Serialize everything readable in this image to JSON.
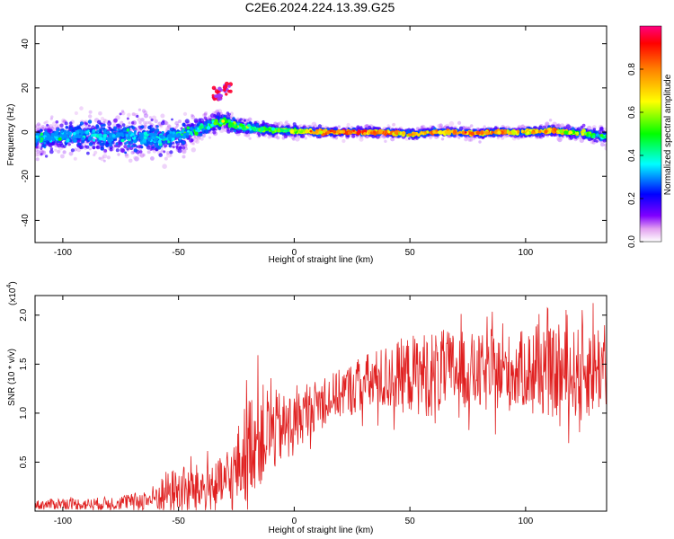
{
  "figure_title": "C2E6.2024.224.13.39.G25",
  "chart_data": [
    {
      "type": "heatmap",
      "xlabel": "Height of straight line (km)",
      "ylabel": "Frequency (Hz)",
      "xlim": [
        -112,
        135
      ],
      "ylim": [
        -50,
        48
      ],
      "xticks": [
        -100,
        -50,
        0,
        50,
        100
      ],
      "yticks": [
        -40,
        -20,
        0,
        20,
        40
      ],
      "grid": false,
      "ridge": {
        "x": [
          -112,
          -100,
          -90,
          -80,
          -70,
          -60,
          -50,
          -40,
          -35,
          -30,
          -25,
          -20,
          -10,
          0,
          10,
          20,
          30,
          40,
          50,
          60,
          70,
          80,
          90,
          100,
          110,
          120,
          135
        ],
        "freq": [
          -3,
          -2,
          -1.5,
          -2,
          -2,
          -3,
          -2,
          2,
          4,
          5,
          3,
          2,
          1,
          0.5,
          0,
          0,
          0,
          0,
          -1,
          0,
          0,
          -0.5,
          0,
          0,
          0.5,
          0,
          -2
        ],
        "amplitude": [
          0.35,
          0.4,
          0.4,
          0.35,
          0.4,
          0.4,
          0.45,
          0.5,
          0.55,
          0.6,
          0.55,
          0.55,
          0.6,
          0.7,
          0.85,
          0.9,
          0.9,
          0.85,
          0.8,
          0.85,
          0.85,
          0.85,
          0.85,
          0.8,
          0.85,
          0.7,
          0.5
        ],
        "spread_hz": [
          8,
          8,
          9,
          10,
          11,
          10,
          8,
          6,
          5,
          5,
          4,
          4,
          3,
          3,
          2.5,
          2.5,
          2.5,
          2.5,
          2.5,
          2.5,
          2.5,
          2.5,
          2.5,
          2.5,
          3,
          3,
          4
        ]
      },
      "secondary_feature": {
        "x": [
          -34,
          -32,
          -30
        ],
        "freq": [
          16,
          18,
          20
        ],
        "amplitude": 0.95
      }
    },
    {
      "type": "colorbar",
      "ylabel": "Normalized spectral amplitude",
      "ylim": [
        0,
        1
      ],
      "yticks": [
        "0.0",
        "0.2",
        "0.4",
        "0.6",
        "0.8"
      ],
      "colors": [
        "#ffffff",
        "#e2a0f0",
        "#8000ff",
        "#0000ff",
        "#00ffff",
        "#00ff00",
        "#ffff00",
        "#ff8000",
        "#ff0000",
        "#ff0080"
      ]
    },
    {
      "type": "line",
      "xlabel": "Height of straight line (km)",
      "ylabel": "SNR (10 * v/v)",
      "y_multiplier": "(x10",
      "y_multiplier_exp": "4",
      "y_multiplier_close": ")",
      "xlim": [
        -112,
        135
      ],
      "ylim": [
        0,
        2.2
      ],
      "xticks": [
        -100,
        -50,
        0,
        50,
        100
      ],
      "yticks": [
        "0.5",
        "1.0",
        "1.5",
        "2.0"
      ],
      "color": "#e02020",
      "envelope": {
        "x": [
          -112,
          -100,
          -90,
          -80,
          -70,
          -62,
          -55,
          -45,
          -35,
          -28,
          -22,
          -18,
          -12,
          -5,
          0,
          10,
          20,
          30,
          40,
          50,
          60,
          70,
          80,
          90,
          100,
          110,
          120,
          128,
          135
        ],
        "mean": [
          0.06,
          0.08,
          0.07,
          0.08,
          0.1,
          0.12,
          0.2,
          0.22,
          0.25,
          0.3,
          0.55,
          0.75,
          0.8,
          0.85,
          0.9,
          1.1,
          1.2,
          1.3,
          1.35,
          1.4,
          1.4,
          1.45,
          1.4,
          1.4,
          1.45,
          1.4,
          1.4,
          1.45,
          1.5
        ],
        "amp": [
          0.05,
          0.06,
          0.06,
          0.07,
          0.08,
          0.12,
          0.22,
          0.25,
          0.25,
          0.3,
          0.5,
          0.55,
          0.5,
          0.35,
          0.3,
          0.25,
          0.25,
          0.3,
          0.35,
          0.4,
          0.45,
          0.4,
          0.4,
          0.4,
          0.4,
          0.45,
          0.45,
          0.5,
          0.45
        ]
      },
      "samples": 1100
    }
  ]
}
